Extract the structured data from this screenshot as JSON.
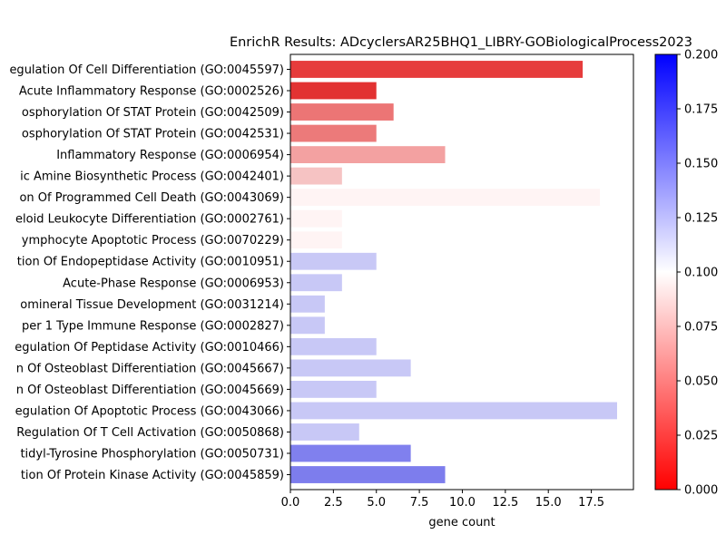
{
  "chart_data": {
    "type": "bar",
    "orientation": "horizontal",
    "title": "EnrichR Results: ADcyclersAR25BHQ1_LIBRY-GOBiologicalProcess2023",
    "xlabel": "gene count",
    "ylabel": "",
    "xlim": [
      0,
      19.95
    ],
    "xticks": [
      "0.0",
      "2.5",
      "5.0",
      "7.5",
      "10.0",
      "12.5",
      "15.0",
      "17.5"
    ],
    "categories": [
      "egulation Of Cell Differentiation (GO:0045597)",
      "Acute Inflammatory Response (GO:0002526)",
      "osphorylation Of STAT Protein (GO:0042509)",
      "osphorylation Of STAT Protein (GO:0042531)",
      "Inflammatory Response (GO:0006954)",
      "ic Amine Biosynthetic Process (GO:0042401)",
      "on Of Programmed Cell Death (GO:0043069)",
      "eloid Leukocyte Differentiation (GO:0002761)",
      "ymphocyte Apoptotic Process (GO:0070229)",
      "tion Of Endopeptidase Activity (GO:0010951)",
      "Acute-Phase Response (GO:0006953)",
      "omineral Tissue Development (GO:0031214)",
      "per 1 Type Immune Response (GO:0002827)",
      "egulation Of Peptidase Activity (GO:0010466)",
      "n Of Osteoblast Differentiation (GO:0045667)",
      "n Of Osteoblast Differentiation (GO:0045669)",
      "egulation Of Apoptotic Process (GO:0043066)",
      "Regulation Of T Cell Activation (GO:0050868)",
      "tidyl-Tyrosine Phosphorylation (GO:0050731)",
      "tion Of Protein Kinase Activity (GO:0045859)"
    ],
    "values": [
      17,
      5,
      6,
      5,
      9,
      3,
      18,
      3,
      3,
      5,
      3,
      2,
      2,
      5,
      7,
      5,
      19,
      4,
      7,
      9
    ],
    "bar_colors": [
      "#e63c3c",
      "#e23232",
      "#ec7575",
      "#ec7a7a",
      "#f3a1a1",
      "#f6c3c3",
      "#fff4f4",
      "#fff4f4",
      "#fff4f4",
      "#c8c8f6",
      "#c8c8f6",
      "#c8c8f6",
      "#c8c8f6",
      "#c8c8f6",
      "#c8c8f6",
      "#c8c8f6",
      "#c8c8f6",
      "#c8c8f6",
      "#8080ee",
      "#7d7ded"
    ],
    "colorbar": {
      "colormap": "bwr_r",
      "range": [
        0.0,
        0.2
      ],
      "ticks": [
        "0.000",
        "0.025",
        "0.050",
        "0.075",
        "0.100",
        "0.125",
        "0.150",
        "0.175",
        "0.200"
      ]
    },
    "grid": false,
    "legend": "none"
  }
}
